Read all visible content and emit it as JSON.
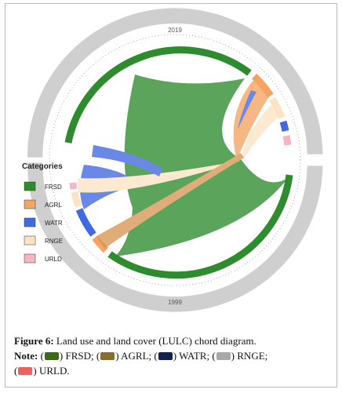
{
  "diagram": {
    "top_year": "2019",
    "bottom_year": "1999",
    "legend_title": "Categories",
    "categories": [
      {
        "code": "FRSD",
        "color": "#2e8b2e"
      },
      {
        "code": "AGRL",
        "color": "#f4a460"
      },
      {
        "code": "WATR",
        "color": "#4169e1"
      },
      {
        "code": "RNGE",
        "color": "#fde3c3"
      },
      {
        "code": "URLD",
        "color": "#f4b6c2"
      }
    ]
  },
  "caption": {
    "figure_label": "Figure 6:",
    "figure_text": " Land use and land cover (LULC) chord diagram.",
    "note_label": "Note:",
    "notes": [
      {
        "text": "FRSD;",
        "color": "#3a6b12"
      },
      {
        "text": "AGRL;",
        "color": "#8a6d2a"
      },
      {
        "text": "WATR;",
        "color": "#14224f"
      },
      {
        "text": "RNGE;",
        "color": "#a8a8a8"
      },
      {
        "text": "URLD.",
        "color": "#f06060"
      }
    ]
  }
}
